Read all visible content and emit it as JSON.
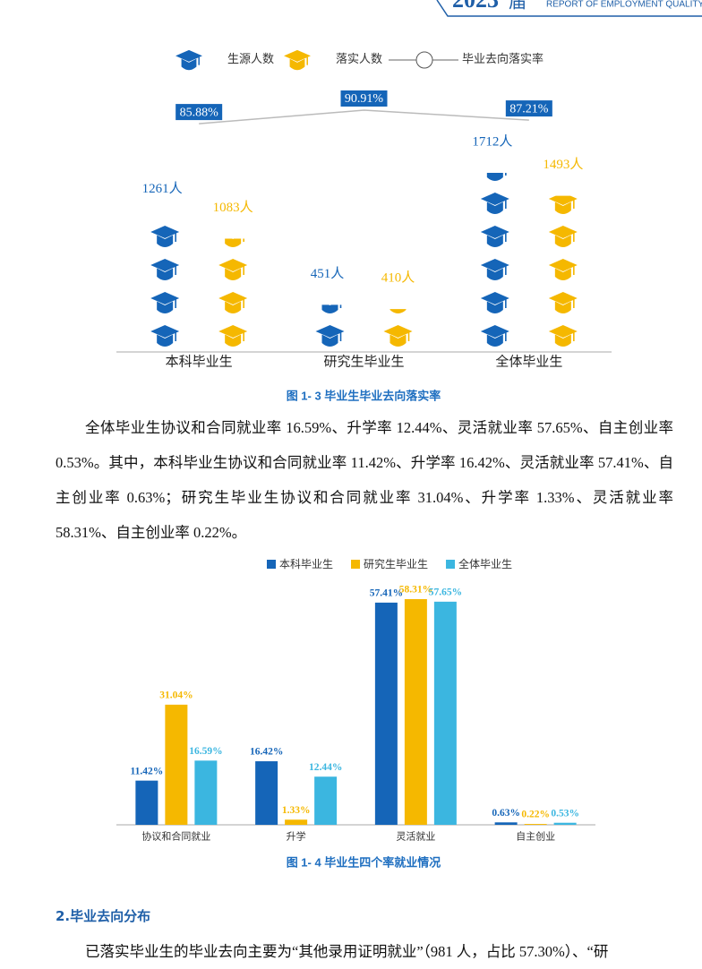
{
  "header": {
    "year": "2023",
    "suffix": "届",
    "subtitle": "REPORT OF EMPLOYMENT QUALITY"
  },
  "chart_data": [
    {
      "type": "pictograph",
      "caption": "图 1- 3 毕业生毕业去向落实率",
      "categories": [
        "本科毕业生",
        "研究生毕业生",
        "全体毕业生"
      ],
      "series": [
        {
          "name": "生源人数",
          "color": "#1565b8",
          "values": [
            1261,
            451,
            1712
          ],
          "value_labels": [
            "1261人",
            "451人",
            "1712人"
          ]
        },
        {
          "name": "落实人数",
          "color": "#f5b800",
          "values": [
            1083,
            410,
            1493
          ],
          "value_labels": [
            "1083人",
            "410人",
            "1493人"
          ]
        },
        {
          "name": "毕业去向落实率",
          "type": "line",
          "color": "#1565b8",
          "values": [
            85.88,
            90.91,
            87.21
          ],
          "value_labels": [
            "85.88%",
            "90.91%",
            "87.21%"
          ]
        }
      ]
    },
    {
      "type": "bar",
      "caption": "图 1- 4 毕业生四个率就业情况",
      "categories": [
        "协议和合同就业",
        "升学",
        "灵活就业",
        "自主创业"
      ],
      "series": [
        {
          "name": "本科毕业生",
          "color": "#1565b8",
          "values": [
            11.42,
            16.42,
            57.41,
            0.63
          ],
          "value_labels": [
            "11.42%",
            "16.42%",
            "57.41%",
            "0.63%"
          ]
        },
        {
          "name": "研究生毕业生",
          "color": "#f5b800",
          "values": [
            31.04,
            1.33,
            58.31,
            0.22
          ],
          "value_labels": [
            "31.04%",
            "1.33%",
            "58.31%",
            "0.22%"
          ]
        },
        {
          "name": "全体毕业生",
          "color": "#3bb6e0",
          "values": [
            16.59,
            12.44,
            57.65,
            0.53
          ],
          "value_labels": [
            "16.59%",
            "12.44%",
            "57.65%",
            "0.53%"
          ]
        }
      ]
    }
  ],
  "paragraphs": [
    "全体毕业生协议和合同就业率 16.59%、升学率 12.44%、灵活就业率 57.65%、自主创业率 0.53%。其中，本科毕业生协议和合同就业率 11.42%、升学率 16.42%、灵活就业率 57.41%、自主创业率 0.63%；研究生毕业生协议和合同就业率 31.04%、升学率 1.33%、灵活就业率 58.31%、自主创业率 0.22%。",
    "已落实毕业生的毕业去向主要为“其他录用证明就业”（981 人，占比 57.30%）、“研"
  ],
  "section_heading": "2.毕业去向分布"
}
